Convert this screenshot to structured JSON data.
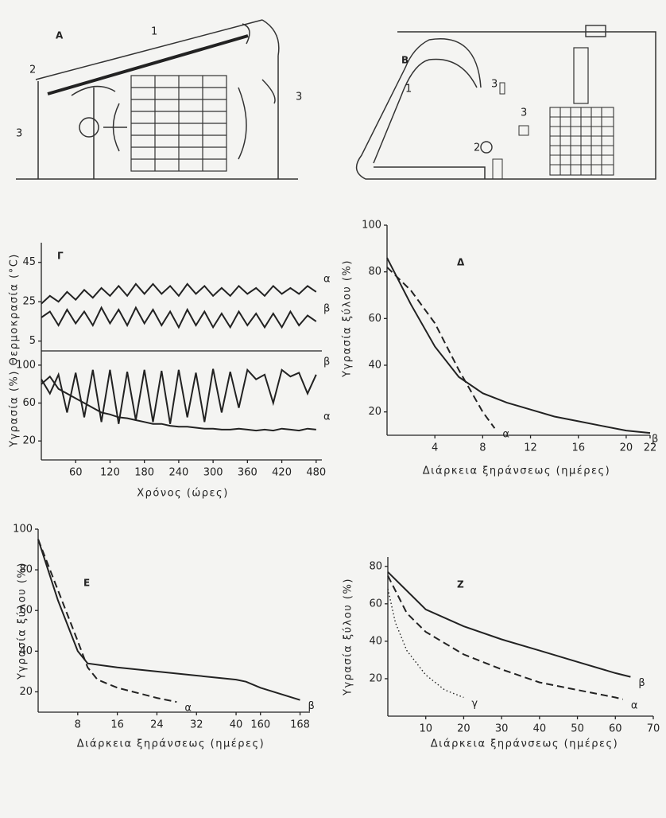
{
  "diagram_a": {
    "label": "A",
    "callouts": [
      "1",
      "2",
      "3",
      "3"
    ]
  },
  "diagram_b": {
    "label": "B",
    "callouts": [
      "1",
      "2",
      "3",
      "3"
    ]
  },
  "chart_data": [
    {
      "type": "line",
      "title": "Γ",
      "x_label": "Χρόνος (ώρες)",
      "y_label": "Υγρασία (%) Θερμοκρασία (°C)",
      "xlim": [
        0,
        490
      ],
      "xticks": [
        60,
        120,
        180,
        240,
        300,
        360,
        420,
        480
      ],
      "panels": [
        {
          "ylim": [
            0,
            55
          ],
          "yticks": [
            5,
            25,
            45
          ],
          "series": [
            {
              "name": "α",
              "color": "#222",
              "style": "solid",
              "x": [
                0,
                15,
                30,
                45,
                60,
                75,
                90,
                105,
                120,
                135,
                150,
                165,
                180,
                195,
                210,
                225,
                240,
                255,
                270,
                285,
                300,
                315,
                330,
                345,
                360,
                375,
                390,
                405,
                420,
                435,
                450,
                465,
                480
              ],
              "values": [
                24,
                28,
                25,
                30,
                26,
                31,
                27,
                32,
                28,
                33,
                28,
                34,
                29,
                34,
                29,
                33,
                28,
                34,
                29,
                33,
                28,
                32,
                28,
                33,
                29,
                32,
                28,
                33,
                29,
                32,
                29,
                33,
                30
              ]
            },
            {
              "name": "β",
              "color": "#222",
              "style": "solid",
              "x": [
                0,
                15,
                30,
                45,
                60,
                75,
                90,
                105,
                120,
                135,
                150,
                165,
                180,
                195,
                210,
                225,
                240,
                255,
                270,
                285,
                300,
                315,
                330,
                345,
                360,
                375,
                390,
                405,
                420,
                435,
                450,
                465,
                480
              ],
              "values": [
                17,
                20,
                13,
                21,
                14,
                20,
                13,
                22,
                14,
                21,
                13,
                22,
                14,
                21,
                13,
                20,
                12,
                21,
                13,
                20,
                12,
                19,
                12,
                20,
                13,
                19,
                12,
                19,
                12,
                20,
                13,
                18,
                15
              ]
            }
          ]
        },
        {
          "ylim": [
            0,
            115
          ],
          "yticks": [
            20,
            60,
            100
          ],
          "series": [
            {
              "name": "β",
              "color": "#222",
              "style": "solid",
              "x": [
                0,
                15,
                30,
                45,
                60,
                75,
                90,
                105,
                120,
                135,
                150,
                165,
                180,
                195,
                210,
                225,
                240,
                255,
                270,
                285,
                300,
                315,
                330,
                345,
                360,
                375,
                390,
                405,
                420,
                435,
                450,
                465,
                480
              ],
              "values": [
                85,
                70,
                90,
                50,
                92,
                45,
                95,
                40,
                95,
                38,
                93,
                42,
                95,
                40,
                94,
                38,
                95,
                45,
                92,
                40,
                96,
                50,
                93,
                55,
                95,
                85,
                90,
                60,
                95,
                88,
                92,
                70,
                90
              ]
            },
            {
              "name": "α",
              "color": "#222",
              "style": "solid",
              "x": [
                0,
                15,
                30,
                45,
                60,
                75,
                90,
                105,
                120,
                135,
                150,
                165,
                180,
                195,
                210,
                225,
                240,
                255,
                270,
                285,
                300,
                315,
                330,
                345,
                360,
                375,
                390,
                405,
                420,
                435,
                450,
                465,
                480
              ],
              "values": [
                80,
                88,
                75,
                70,
                65,
                60,
                55,
                50,
                48,
                45,
                44,
                42,
                40,
                38,
                38,
                36,
                35,
                35,
                34,
                33,
                33,
                32,
                32,
                33,
                32,
                31,
                32,
                31,
                33,
                32,
                31,
                33,
                32
              ]
            }
          ]
        }
      ]
    },
    {
      "type": "line",
      "title": "Δ",
      "x_label": "Διάρκεια ξηράνσεως (ημέρες)",
      "y_label": "Υγρασία ξύλου (%)",
      "xlim": [
        0,
        22
      ],
      "xticks": [
        4,
        8,
        12,
        16,
        20,
        22
      ],
      "ylim": [
        10,
        100
      ],
      "yticks": [
        20,
        40,
        60,
        80,
        100
      ],
      "series": [
        {
          "name": "α",
          "color": "#222",
          "style": "dashed",
          "x": [
            0,
            2,
            4,
            6,
            8,
            9
          ],
          "values": [
            82,
            72,
            58,
            38,
            20,
            13
          ]
        },
        {
          "name": "β",
          "color": "#222",
          "style": "solid",
          "x": [
            0,
            2,
            4,
            6,
            8,
            10,
            12,
            14,
            16,
            18,
            20,
            22
          ],
          "values": [
            86,
            66,
            48,
            35,
            28,
            24,
            21,
            18,
            16,
            14,
            12,
            11
          ]
        }
      ]
    },
    {
      "type": "line",
      "title": "E",
      "x_label": "Διάρκεια ξηράνσεως (ημέρες)",
      "y_label": "Υγρασία ξύλου (%)",
      "xlim": [
        0,
        170
      ],
      "xbreak": [
        42,
        159
      ],
      "xticks": [
        8,
        16,
        24,
        32,
        40,
        160,
        168
      ],
      "ylim": [
        10,
        100
      ],
      "yticks": [
        20,
        40,
        60,
        80,
        100
      ],
      "series": [
        {
          "name": "α",
          "color": "#222",
          "style": "dashed",
          "x": [
            0,
            4,
            8,
            10,
            12,
            16,
            24,
            28
          ],
          "values": [
            95,
            70,
            45,
            32,
            26,
            22,
            17,
            15
          ]
        },
        {
          "name": "β",
          "color": "#222",
          "style": "solid",
          "x": [
            0,
            4,
            8,
            10,
            16,
            24,
            32,
            40,
            42,
            160,
            168
          ],
          "values": [
            95,
            65,
            40,
            34,
            32,
            30,
            28,
            26,
            25,
            22,
            16
          ]
        }
      ]
    },
    {
      "type": "line",
      "title": "Z",
      "x_label": "Διάρκεια ξηράνσεως (ημέρες)",
      "y_label": "Υγρασία ξύλου (%)",
      "xlim": [
        0,
        70
      ],
      "xticks": [
        10,
        20,
        30,
        40,
        50,
        60,
        70
      ],
      "ylim": [
        0,
        85
      ],
      "yticks": [
        20,
        40,
        60,
        80
      ],
      "series": [
        {
          "name": "β",
          "color": "#222",
          "style": "solid",
          "x": [
            0,
            10,
            20,
            30,
            40,
            50,
            60,
            64
          ],
          "values": [
            77,
            57,
            48,
            41,
            35,
            29,
            23,
            21
          ]
        },
        {
          "name": "α",
          "color": "#222",
          "style": "dashed",
          "x": [
            0,
            5,
            10,
            20,
            30,
            40,
            50,
            60,
            62
          ],
          "values": [
            75,
            55,
            45,
            33,
            25,
            18,
            14,
            10,
            9
          ]
        },
        {
          "name": "γ",
          "color": "#222",
          "style": "dotted",
          "x": [
            0,
            2,
            5,
            10,
            15,
            20
          ],
          "values": [
            68,
            50,
            35,
            22,
            14,
            10
          ]
        }
      ]
    }
  ]
}
